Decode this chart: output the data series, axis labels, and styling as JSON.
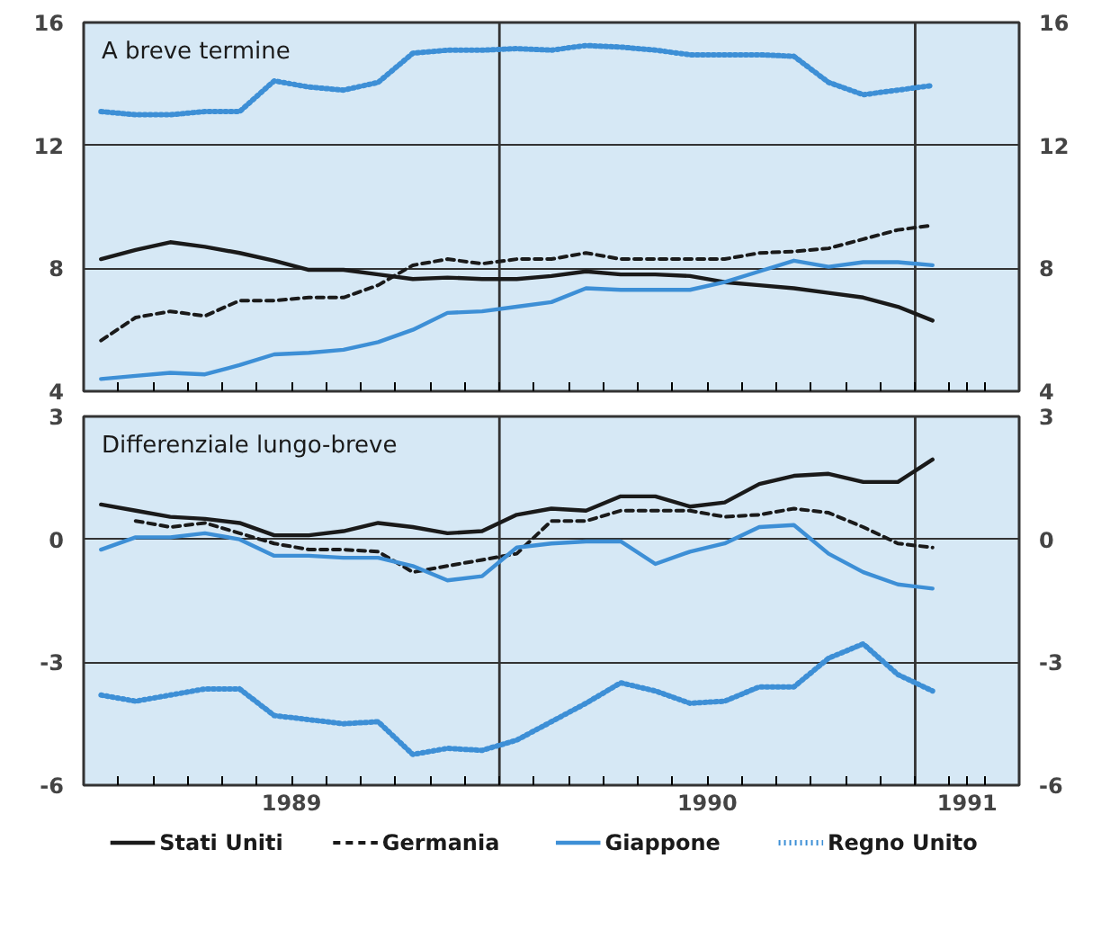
{
  "chart_data": [
    {
      "type": "line",
      "title": "A breve termine",
      "x": [
        1989.0417,
        1989.125,
        1989.2083,
        1989.2917,
        1989.375,
        1989.4583,
        1989.5417,
        1989.625,
        1989.7083,
        1989.7917,
        1989.875,
        1989.9583,
        1990.0417,
        1990.125,
        1990.2083,
        1990.2917,
        1990.375,
        1990.4583,
        1990.5417,
        1990.625,
        1990.7083,
        1990.7917,
        1990.875,
        1990.9583,
        1991.0417
      ],
      "xlim": [
        1989,
        1991.25
      ],
      "xticks": [
        {
          "value": 1989.0833,
          "label": null
        },
        {
          "value": 1989.1667,
          "label": null
        },
        {
          "value": 1989.25,
          "label": null
        },
        {
          "value": 1989.3333,
          "label": null
        },
        {
          "value": 1989.4167,
          "label": null
        },
        {
          "value": 1989.5,
          "label": null
        },
        {
          "value": 1989.5833,
          "label": null
        },
        {
          "value": 1989.6667,
          "label": null
        },
        {
          "value": 1989.75,
          "label": null
        },
        {
          "value": 1989.8333,
          "label": null
        },
        {
          "value": 1989.9167,
          "label": null
        },
        {
          "value": 1990,
          "label": null
        },
        {
          "value": 1990.0833,
          "label": null
        },
        {
          "value": 1990.1667,
          "label": null
        },
        {
          "value": 1990.25,
          "label": null
        },
        {
          "value": 1990.3333,
          "label": null
        },
        {
          "value": 1990.4167,
          "label": null
        },
        {
          "value": 1990.5,
          "label": null
        },
        {
          "value": 1990.5833,
          "label": null
        },
        {
          "value": 1990.6667,
          "label": null
        },
        {
          "value": 1990.75,
          "label": null
        },
        {
          "value": 1990.8333,
          "label": null
        },
        {
          "value": 1990.9167,
          "label": null
        },
        {
          "value": 1991,
          "label": null
        },
        {
          "value": 1991.0833,
          "label": null
        },
        {
          "value": 1991.125,
          "label": null
        },
        {
          "value": 1991.1667,
          "label": null
        }
      ],
      "ylim": [
        4,
        16
      ],
      "yticks": [
        4,
        8,
        12,
        16
      ],
      "y2lim": [
        4,
        16
      ],
      "y2ticks": [
        4,
        8,
        12,
        16
      ],
      "tick_labels": "y",
      "grid": "y",
      "legend": false,
      "ref_lines": [
        {
          "axis": "x",
          "value": 1990,
          "color": "#333333"
        },
        {
          "axis": "x",
          "value": 1991,
          "color": "#333333"
        }
      ],
      "series": [
        {
          "color": "#1a1a1a",
          "line_style": "solid",
          "values": [
            8.3,
            8.6,
            8.85,
            8.7,
            8.5,
            8.25,
            7.95,
            7.95,
            7.8,
            7.65,
            7.7,
            7.65,
            7.65,
            7.75,
            7.9,
            7.8,
            7.8,
            7.75,
            7.55,
            7.45,
            7.35,
            7.2,
            7.05,
            6.75,
            6.3
          ]
        },
        {
          "color": "#1a1a1a",
          "line_style": "dashed",
          "values": [
            5.65,
            6.4,
            6.6,
            6.45,
            6.95,
            6.95,
            7.05,
            7.05,
            7.45,
            8.1,
            8.3,
            8.15,
            8.3,
            8.3,
            8.5,
            8.3,
            8.3,
            8.3,
            8.3,
            8.5,
            8.55,
            8.65,
            8.95,
            9.25,
            9.4
          ]
        },
        {
          "color": "#3d8fd6",
          "line_style": "solid",
          "values": [
            4.4,
            4.5,
            4.6,
            4.55,
            4.85,
            5.2,
            5.25,
            5.35,
            5.6,
            6.0,
            6.55,
            6.6,
            6.75,
            6.9,
            7.35,
            7.3,
            7.3,
            7.3,
            7.55,
            7.9,
            8.25,
            8.05,
            8.2,
            8.2,
            8.1
          ]
        },
        {
          "color": "#3d8fd6",
          "line_style": "dotted",
          "values": [
            13.1,
            13.0,
            13.0,
            13.1,
            13.1,
            14.1,
            13.9,
            13.8,
            14.05,
            15.0,
            15.1,
            15.1,
            15.15,
            15.1,
            15.25,
            15.2,
            15.1,
            14.95,
            14.95,
            14.95,
            14.9,
            14.05,
            13.65,
            13.8,
            13.95
          ]
        }
      ]
    },
    {
      "type": "line",
      "title": "Differenziale lungo-breve",
      "x": [
        1989.0417,
        1989.125,
        1989.2083,
        1989.2917,
        1989.375,
        1989.4583,
        1989.5417,
        1989.625,
        1989.7083,
        1989.7917,
        1989.875,
        1989.9583,
        1990.0417,
        1990.125,
        1990.2083,
        1990.2917,
        1990.375,
        1990.4583,
        1990.5417,
        1990.625,
        1990.7083,
        1990.7917,
        1990.875,
        1990.9583,
        1991.0417
      ],
      "xlim": [
        1989,
        1991.25
      ],
      "xticks": [
        {
          "value": 1989.0833,
          "label": null
        },
        {
          "value": 1989.1667,
          "label": null
        },
        {
          "value": 1989.25,
          "label": null
        },
        {
          "value": 1989.3333,
          "label": null
        },
        {
          "value": 1989.4167,
          "label": null
        },
        {
          "value": 1989.5,
          "label": "1989"
        },
        {
          "value": 1989.5833,
          "label": null
        },
        {
          "value": 1989.6667,
          "label": null
        },
        {
          "value": 1989.75,
          "label": null
        },
        {
          "value": 1989.8333,
          "label": null
        },
        {
          "value": 1989.9167,
          "label": null
        },
        {
          "value": 1990,
          "label": null
        },
        {
          "value": 1990.0833,
          "label": null
        },
        {
          "value": 1990.1667,
          "label": null
        },
        {
          "value": 1990.25,
          "label": null
        },
        {
          "value": 1990.3333,
          "label": null
        },
        {
          "value": 1990.4167,
          "label": null
        },
        {
          "value": 1990.5,
          "label": "1990"
        },
        {
          "value": 1990.5833,
          "label": null
        },
        {
          "value": 1990.6667,
          "label": null
        },
        {
          "value": 1990.75,
          "label": null
        },
        {
          "value": 1990.8333,
          "label": null
        },
        {
          "value": 1990.9167,
          "label": null
        },
        {
          "value": 1991,
          "label": null
        },
        {
          "value": 1991.0833,
          "label": null
        },
        {
          "value": 1991.125,
          "label": "1991"
        },
        {
          "value": 1991.1667,
          "label": null
        }
      ],
      "ylim": [
        -6,
        3
      ],
      "yticks": [
        -6,
        -3,
        0,
        3
      ],
      "y2lim": [
        -6,
        3
      ],
      "y2ticks": [
        -6,
        -3,
        0,
        3
      ],
      "grid": "y",
      "legend": "bottom",
      "ref_lines": [
        {
          "axis": "x",
          "value": 1990,
          "color": "#333333"
        },
        {
          "axis": "x",
          "value": 1991,
          "color": "#333333"
        }
      ],
      "series": [
        {
          "name": "Stati Uniti",
          "color": "#1a1a1a",
          "line_style": "solid",
          "values": [
            0.85,
            0.7,
            0.55,
            0.5,
            0.4,
            0.1,
            0.1,
            0.2,
            0.4,
            0.3,
            0.15,
            0.2,
            0.6,
            0.75,
            0.7,
            1.05,
            1.05,
            0.8,
            0.9,
            1.35,
            1.55,
            1.6,
            1.4,
            1.4,
            1.95
          ]
        },
        {
          "name": "Germania",
          "color": "#1a1a1a",
          "line_style": "dashed",
          "values": [
            null,
            0.45,
            0.3,
            0.4,
            0.15,
            -0.1,
            -0.25,
            -0.25,
            -0.3,
            -0.8,
            -0.65,
            -0.5,
            -0.35,
            0.45,
            0.45,
            0.7,
            0.7,
            0.7,
            0.55,
            0.6,
            0.75,
            0.65,
            0.3,
            -0.1,
            -0.2
          ]
        },
        {
          "name": "Giappone",
          "color": "#3d8fd6",
          "line_style": "solid",
          "values": [
            -0.25,
            0.05,
            0.05,
            0.15,
            0.0,
            -0.4,
            -0.4,
            -0.45,
            -0.45,
            -0.65,
            -1.0,
            -0.9,
            -0.2,
            -0.1,
            -0.05,
            -0.05,
            -0.6,
            -0.3,
            -0.1,
            0.3,
            0.35,
            -0.35,
            -0.8,
            -1.1,
            -1.2
          ]
        },
        {
          "name": "Regno Unito",
          "color": "#3d8fd6",
          "line_style": "dotted",
          "values": [
            -3.8,
            -3.95,
            -3.8,
            -3.65,
            -3.65,
            -4.3,
            -4.4,
            -4.5,
            -4.45,
            -5.25,
            -5.1,
            -5.15,
            -4.9,
            -4.45,
            -4.0,
            -3.5,
            -3.7,
            -4.0,
            -3.95,
            -3.6,
            -3.6,
            -2.9,
            -2.55,
            -3.3,
            -3.7
          ]
        }
      ]
    }
  ]
}
